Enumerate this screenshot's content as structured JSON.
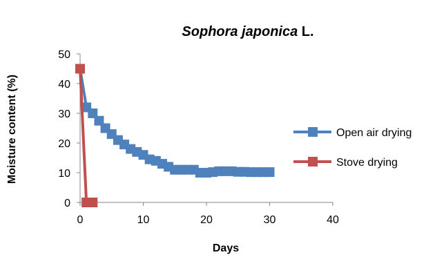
{
  "chart_data": {
    "type": "line",
    "title": {
      "italic_part": "Sophora japonica",
      "normal_part": " L."
    },
    "xlabel": "Days",
    "ylabel": "Moisture content (%)",
    "xlim": [
      0,
      40
    ],
    "ylim": [
      0,
      50
    ],
    "xticks": [
      0,
      10,
      20,
      30,
      40
    ],
    "yticks": [
      0,
      10,
      20,
      30,
      40,
      50
    ],
    "grid": false,
    "legend_position": "right",
    "series": [
      {
        "name": "Open air drying",
        "color": "#4F81BD",
        "marker": "square",
        "x": [
          0,
          1,
          2,
          3,
          4,
          5,
          6,
          7,
          8,
          9,
          10,
          11,
          12,
          13,
          14,
          15,
          16,
          17,
          18,
          19,
          20,
          21,
          22,
          23,
          24,
          25,
          26,
          27,
          28,
          29,
          30
        ],
        "y": [
          45,
          32,
          30,
          27.5,
          25,
          23,
          21,
          19.5,
          18,
          17,
          16,
          14.5,
          14,
          13,
          12,
          11,
          11,
          11,
          11,
          10,
          10,
          10.2,
          10.5,
          10.5,
          10.5,
          10.3,
          10.3,
          10.2,
          10.2,
          10.2,
          10.2
        ]
      },
      {
        "name": "Stove drying",
        "color": "#C0504D",
        "marker": "square",
        "x": [
          0,
          1,
          2
        ],
        "y": [
          45,
          0,
          0
        ]
      }
    ]
  }
}
